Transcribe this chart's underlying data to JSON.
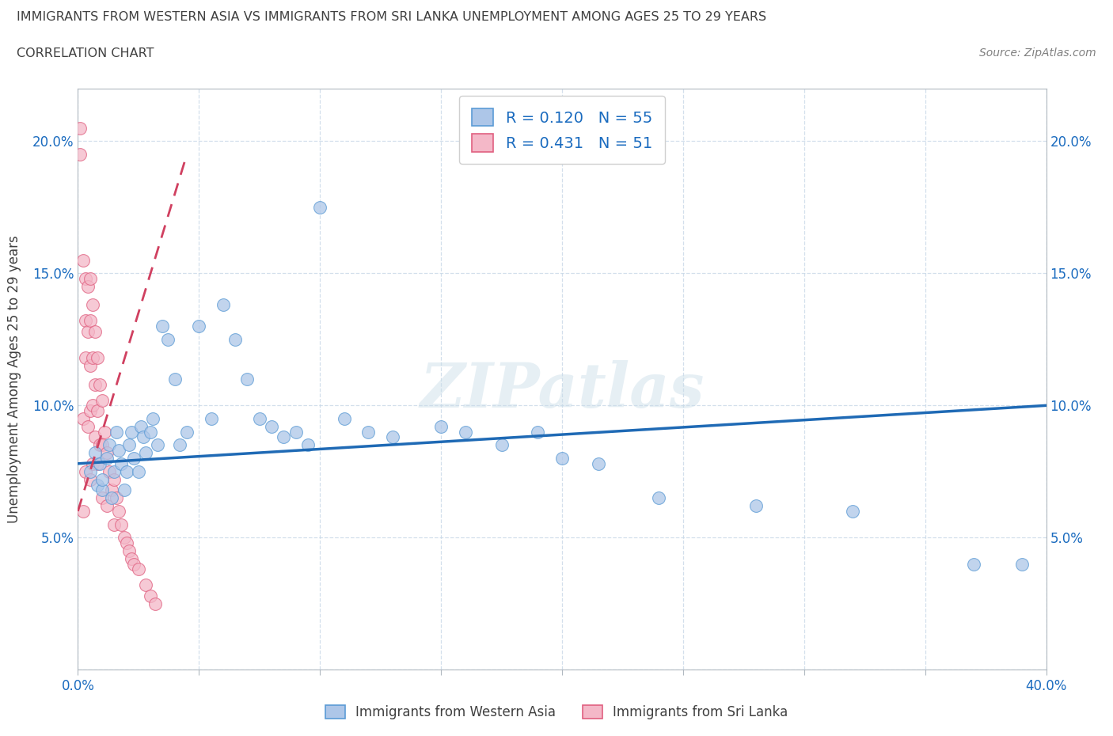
{
  "title_line1": "IMMIGRANTS FROM WESTERN ASIA VS IMMIGRANTS FROM SRI LANKA UNEMPLOYMENT AMONG AGES 25 TO 29 YEARS",
  "title_line2": "CORRELATION CHART",
  "source": "Source: ZipAtlas.com",
  "ylabel_label": "Unemployment Among Ages 25 to 29 years",
  "legend_label1": "Immigrants from Western Asia",
  "legend_label2": "Immigrants from Sri Lanka",
  "R1": 0.12,
  "N1": 55,
  "R2": 0.431,
  "N2": 51,
  "color_blue_fill": "#adc6e8",
  "color_blue_edge": "#5b9bd5",
  "color_pink_fill": "#f4b8c8",
  "color_pink_edge": "#e06080",
  "color_blue_line": "#1f6ab5",
  "color_pink_line": "#d04060",
  "watermark": "ZIPatlas",
  "xlim": [
    0.0,
    0.4
  ],
  "ylim": [
    0.0,
    0.22
  ],
  "xticks": [
    0.0,
    0.05,
    0.1,
    0.15,
    0.2,
    0.25,
    0.3,
    0.35,
    0.4
  ],
  "yticks": [
    0.0,
    0.05,
    0.1,
    0.15,
    0.2
  ],
  "western_asia_x": [
    0.005,
    0.007,
    0.008,
    0.009,
    0.01,
    0.01,
    0.012,
    0.013,
    0.014,
    0.015,
    0.016,
    0.017,
    0.018,
    0.019,
    0.02,
    0.021,
    0.022,
    0.023,
    0.025,
    0.026,
    0.027,
    0.028,
    0.03,
    0.031,
    0.033,
    0.035,
    0.037,
    0.04,
    0.042,
    0.045,
    0.05,
    0.055,
    0.06,
    0.065,
    0.07,
    0.075,
    0.08,
    0.085,
    0.09,
    0.095,
    0.1,
    0.11,
    0.12,
    0.13,
    0.15,
    0.16,
    0.175,
    0.19,
    0.2,
    0.215,
    0.24,
    0.28,
    0.32,
    0.37,
    0.39
  ],
  "western_asia_y": [
    0.075,
    0.082,
    0.07,
    0.078,
    0.068,
    0.072,
    0.08,
    0.085,
    0.065,
    0.075,
    0.09,
    0.083,
    0.078,
    0.068,
    0.075,
    0.085,
    0.09,
    0.08,
    0.075,
    0.092,
    0.088,
    0.082,
    0.09,
    0.095,
    0.085,
    0.13,
    0.125,
    0.11,
    0.085,
    0.09,
    0.13,
    0.095,
    0.138,
    0.125,
    0.11,
    0.095,
    0.092,
    0.088,
    0.09,
    0.085,
    0.175,
    0.095,
    0.09,
    0.088,
    0.092,
    0.09,
    0.085,
    0.09,
    0.08,
    0.078,
    0.065,
    0.062,
    0.06,
    0.04,
    0.04
  ],
  "sri_lanka_x": [
    0.001,
    0.001,
    0.002,
    0.002,
    0.002,
    0.003,
    0.003,
    0.003,
    0.003,
    0.004,
    0.004,
    0.004,
    0.005,
    0.005,
    0.005,
    0.005,
    0.005,
    0.006,
    0.006,
    0.006,
    0.006,
    0.007,
    0.007,
    0.007,
    0.008,
    0.008,
    0.008,
    0.009,
    0.009,
    0.01,
    0.01,
    0.01,
    0.011,
    0.012,
    0.012,
    0.013,
    0.014,
    0.015,
    0.015,
    0.016,
    0.017,
    0.018,
    0.019,
    0.02,
    0.021,
    0.022,
    0.023,
    0.025,
    0.028,
    0.03,
    0.032
  ],
  "sri_lanka_y": [
    0.195,
    0.205,
    0.155,
    0.095,
    0.06,
    0.148,
    0.132,
    0.118,
    0.075,
    0.145,
    0.128,
    0.092,
    0.148,
    0.132,
    0.115,
    0.098,
    0.072,
    0.138,
    0.118,
    0.1,
    0.078,
    0.128,
    0.108,
    0.088,
    0.118,
    0.098,
    0.078,
    0.108,
    0.085,
    0.102,
    0.085,
    0.065,
    0.09,
    0.082,
    0.062,
    0.075,
    0.068,
    0.072,
    0.055,
    0.065,
    0.06,
    0.055,
    0.05,
    0.048,
    0.045,
    0.042,
    0.04,
    0.038,
    0.032,
    0.028,
    0.025
  ],
  "blue_trendline_x": [
    0.0,
    0.4
  ],
  "blue_trendline_y": [
    0.078,
    0.1
  ],
  "pink_trendline_x": [
    0.0,
    0.045
  ],
  "pink_trendline_y": [
    0.06,
    0.195
  ]
}
